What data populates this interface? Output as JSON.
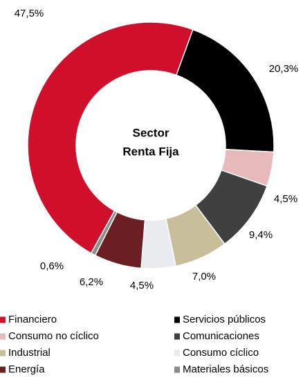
{
  "chart_data": {
    "type": "donut",
    "title": "Sector Renta Fija",
    "title_lines": [
      "Sector",
      "Renta Fija"
    ],
    "categories": [
      "Financiero",
      "Servicios públicos",
      "Consumo no cíclico",
      "Comunicaciones",
      "Industrial",
      "Consumo cíclico",
      "Energía",
      "Materiales básicos"
    ],
    "values": [
      47.5,
      20.3,
      4.5,
      9.4,
      7.0,
      4.5,
      6.2,
      0.6
    ],
    "value_labels": [
      "47,5%",
      "20,3%",
      "4,5%",
      "9,4%",
      "7,0%",
      "4,5%",
      "6,2%",
      "0,6%"
    ],
    "colors": [
      "#d0102a",
      "#000000",
      "#e8b9ba",
      "#404040",
      "#c8bf9a",
      "#e8ecee",
      "#6b1f22",
      "#8c8c8c"
    ],
    "legend": "bottom"
  }
}
